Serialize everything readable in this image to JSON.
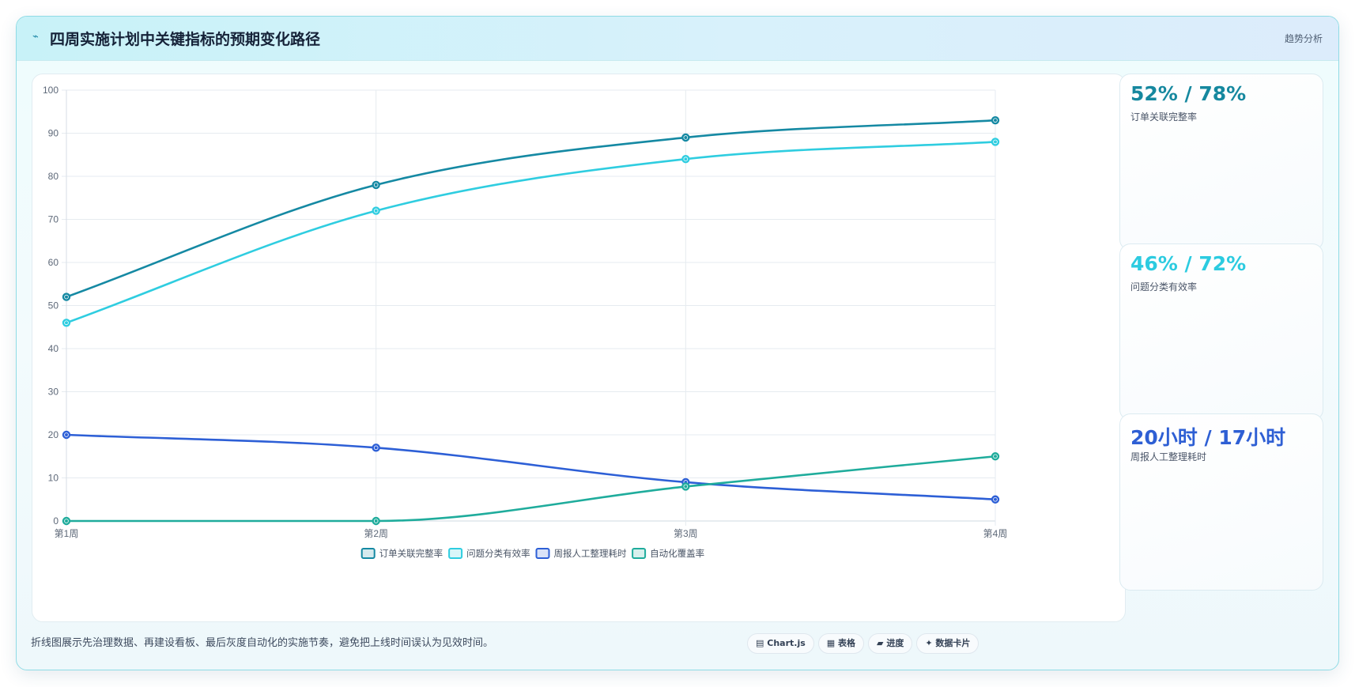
{
  "header": {
    "icon": "trend-line-icon",
    "title": "四周实施计划中关键指标的预期变化路径",
    "link_label": "趋势分析"
  },
  "chart_data": {
    "type": "line",
    "categories": [
      "第1周",
      "第2周",
      "第3周",
      "第4周"
    ],
    "ylim": [
      0,
      100
    ],
    "yticks": [
      0,
      10,
      20,
      30,
      40,
      50,
      60,
      70,
      80,
      90,
      100
    ],
    "grid": true,
    "legend_position": "bottom",
    "series": [
      {
        "name": "订单关联完整率",
        "color": "#1589a3",
        "values": [
          52,
          78,
          89,
          93
        ]
      },
      {
        "name": "问题分类有效率",
        "color": "#2fcde0",
        "values": [
          46,
          72,
          84,
          88
        ]
      },
      {
        "name": "周报人工整理耗时",
        "color": "#2d5fd6",
        "values": [
          20,
          17,
          9,
          5
        ]
      },
      {
        "name": "自动化覆盖率",
        "color": "#1fac9c",
        "values": [
          0,
          0,
          8,
          15
        ]
      }
    ]
  },
  "stats": [
    {
      "value": "52% / 78%",
      "label": "订单关联完整率",
      "color": "#16889f"
    },
    {
      "value": "46% / 72%",
      "label": "问题分类有效率",
      "color": "#2ccbe0"
    },
    {
      "value": "20小时 / 17小时",
      "label": "周报人工整理耗时",
      "color": "#2e5fd4"
    }
  ],
  "footnote": "折线图展示先治理数据、再建设看板、最后灰度自动化的实施节奏，避免把上线时间误认为见效时间。",
  "chips": [
    {
      "icon": "chart-icon",
      "glyph": "▤",
      "label": "Chart.js"
    },
    {
      "icon": "table-icon",
      "glyph": "▦",
      "label": "表格"
    },
    {
      "icon": "progress-icon",
      "glyph": "▰",
      "label": "进度"
    },
    {
      "icon": "card-icon",
      "glyph": "✦",
      "label": "数据卡片"
    }
  ]
}
